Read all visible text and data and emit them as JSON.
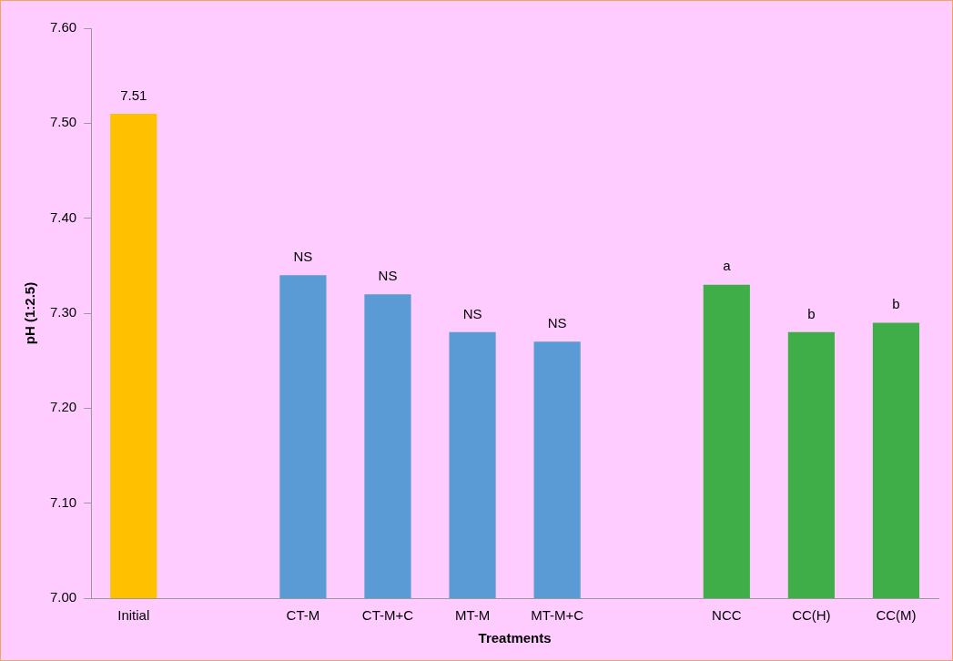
{
  "chart_data": {
    "type": "bar",
    "xlabel": "Treatments",
    "ylabel": "pH (1:2.5)",
    "categories": [
      "Initial",
      null,
      "CT-M",
      "CT-M+C",
      "MT-M",
      "MT-M+C",
      null,
      "NCC",
      "CC(H)",
      "CC(M)"
    ],
    "values": [
      7.51,
      null,
      7.34,
      7.32,
      7.28,
      7.27,
      null,
      7.33,
      7.28,
      7.29
    ],
    "colors": [
      "#ffc000",
      null,
      "#5b9bd5",
      "#5b9bd5",
      "#5b9bd5",
      "#5b9bd5",
      null,
      "#3fae49",
      "#3fae49",
      "#3fae49"
    ],
    "value_labels": [
      "7.51",
      null,
      "NS",
      "NS",
      "NS",
      "NS",
      null,
      "a",
      "b",
      "b"
    ],
    "ylim": [
      7.0,
      7.6
    ],
    "yticks": [
      {
        "value": 7.0,
        "label": "7.00"
      },
      {
        "value": 7.1,
        "label": "7.10"
      },
      {
        "value": 7.2,
        "label": "7.20"
      },
      {
        "value": 7.3,
        "label": "7.30"
      },
      {
        "value": 7.4,
        "label": "7.40"
      },
      {
        "value": 7.5,
        "label": "7.50"
      },
      {
        "value": 7.6,
        "label": "7.60"
      }
    ],
    "grid": false,
    "legend": false
  }
}
